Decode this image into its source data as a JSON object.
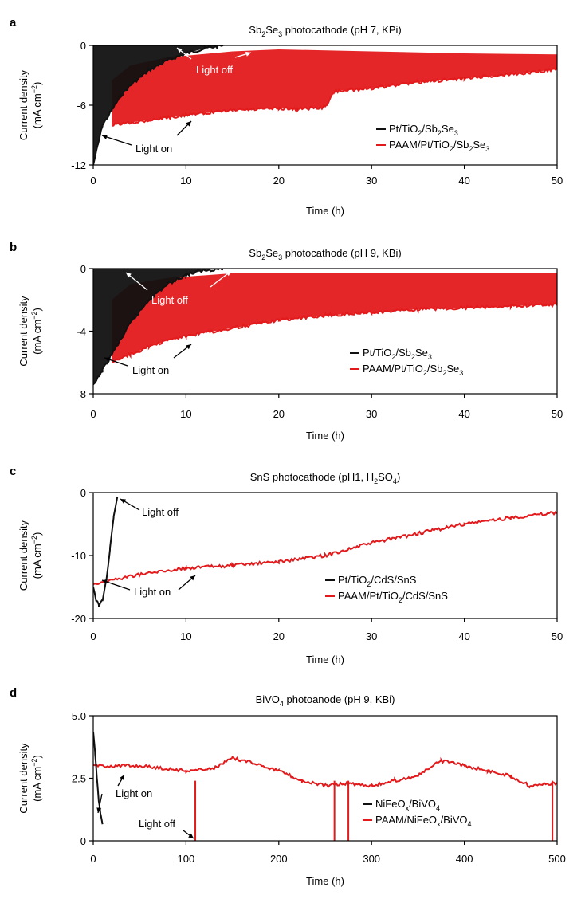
{
  "chart_data": [
    {
      "panel": "a",
      "type": "line",
      "title": {
        "main": "Sb",
        "sub1": "2",
        "mid": "Se",
        "sub2": "3",
        "tail": " photocathode (pH 7, KPi)"
      },
      "xlabel": "Time (h)",
      "ylabel": "Current density",
      "yunit": {
        "pre": "(mA cm",
        "sup": "−2",
        "post": ")"
      },
      "xlim": [
        0,
        50
      ],
      "ylim": [
        -12,
        0
      ],
      "xticks": [
        0,
        10,
        20,
        30,
        40,
        50
      ],
      "yticks": [
        0,
        -6,
        -12
      ],
      "legend_position": "lower-right",
      "series": [
        {
          "name": "Pt/TiO2/Sb2Se3",
          "legend": {
            "parts": [
              "Pt/TiO",
              "2",
              "/Sb",
              "2",
              "Se",
              "3"
            ]
          },
          "color": "#111111",
          "points": [
            [
              0,
              -12
            ],
            [
              0.5,
              -10
            ],
            [
              1,
              -8
            ],
            [
              2,
              -6.5
            ],
            [
              3,
              -5
            ],
            [
              4,
              -4
            ],
            [
              6,
              -2.5
            ],
            [
              8,
              -1.5
            ],
            [
              10,
              -0.8
            ],
            [
              12,
              -0.3
            ],
            [
              14,
              0
            ]
          ],
          "light_off": [
            [
              0,
              0
            ],
            [
              14,
              0
            ]
          ]
        },
        {
          "name": "PAAM/Pt/TiO2/Sb2Se3",
          "legend": {
            "parts": [
              "PAAM/Pt/TiO",
              "2",
              "/Sb",
              "2",
              "Se",
              "3"
            ]
          },
          "color": "#e31a1c",
          "points": [
            [
              2,
              -8
            ],
            [
              5,
              -7.6
            ],
            [
              10,
              -7
            ],
            [
              15,
              -6.5
            ],
            [
              20,
              -6.3
            ],
            [
              22,
              -6.4
            ],
            [
              25,
              -6.2
            ],
            [
              26,
              -4.6
            ],
            [
              30,
              -4.3
            ],
            [
              35,
              -3.7
            ],
            [
              40,
              -3.3
            ],
            [
              45,
              -2.9
            ],
            [
              50,
              -2.4
            ]
          ],
          "light_off": [
            [
              2,
              -3.5
            ],
            [
              4,
              -2
            ],
            [
              8,
              -1.2
            ],
            [
              15,
              -0.6
            ],
            [
              20,
              -0.4
            ],
            [
              30,
              -0.6
            ],
            [
              40,
              -0.8
            ],
            [
              50,
              -0.9
            ]
          ]
        }
      ],
      "annotations": [
        "Light off",
        "Light on"
      ]
    },
    {
      "panel": "b",
      "type": "line",
      "title": {
        "main": "Sb",
        "sub1": "2",
        "mid": "Se",
        "sub2": "3",
        "tail": " photocathode (pH 9, KBi)"
      },
      "xlabel": "Time (h)",
      "ylabel": "Current density",
      "yunit": {
        "pre": "(mA cm",
        "sup": "−2",
        "post": ")"
      },
      "xlim": [
        0,
        50
      ],
      "ylim": [
        -8,
        0
      ],
      "xticks": [
        0,
        10,
        20,
        30,
        40,
        50
      ],
      "yticks": [
        0,
        -4,
        -8
      ],
      "legend_position": "lower-right",
      "series": [
        {
          "name": "Pt/TiO2/Sb2Se3",
          "legend": {
            "parts": [
              "Pt/TiO",
              "2",
              "/Sb",
              "2",
              "Se",
              "3"
            ]
          },
          "color": "#111111",
          "points": [
            [
              0,
              -7.5
            ],
            [
              1,
              -6.5
            ],
            [
              2,
              -5.5
            ],
            [
              3,
              -4.5
            ],
            [
              4,
              -3.5
            ],
            [
              6,
              -2
            ],
            [
              8,
              -1
            ],
            [
              10,
              -0.4
            ],
            [
              12,
              -0.1
            ],
            [
              14,
              0
            ]
          ],
          "light_off": [
            [
              0,
              0
            ],
            [
              14,
              0
            ]
          ]
        },
        {
          "name": "PAAM/Pt/TiO2/Sb2Se3",
          "legend": {
            "parts": [
              "PAAM/Pt/TiO",
              "2",
              "/Sb",
              "2",
              "Se",
              "3"
            ]
          },
          "color": "#e31a1c",
          "points": [
            [
              2,
              -6
            ],
            [
              4,
              -5.5
            ],
            [
              6,
              -5
            ],
            [
              8,
              -4.6
            ],
            [
              10,
              -4.3
            ],
            [
              15,
              -3.8
            ],
            [
              20,
              -3.3
            ],
            [
              25,
              -3
            ],
            [
              30,
              -2.8
            ],
            [
              35,
              -2.6
            ],
            [
              40,
              -2.5
            ],
            [
              45,
              -2.4
            ],
            [
              50,
              -2.3
            ]
          ],
          "light_off": [
            [
              2,
              -2
            ],
            [
              4,
              -1
            ],
            [
              8,
              -0.6
            ],
            [
              15,
              -0.3
            ],
            [
              25,
              -0.3
            ],
            [
              35,
              -0.3
            ],
            [
              50,
              -0.3
            ]
          ]
        }
      ],
      "annotations": [
        "Light off",
        "Light on"
      ]
    },
    {
      "panel": "c",
      "type": "line",
      "title": {
        "main": "SnS photocathode (pH1, H",
        "sub1": "2",
        "mid": "SO",
        "sub2": "4",
        "tail": ")"
      },
      "xlabel": "Time (h)",
      "ylabel": "Current density",
      "yunit": {
        "pre": "(mA cm",
        "sup": "−2",
        "post": ")"
      },
      "xlim": [
        0,
        50
      ],
      "ylim": [
        -20,
        0
      ],
      "xticks": [
        0,
        10,
        20,
        30,
        40,
        50
      ],
      "yticks": [
        0,
        -10,
        -20
      ],
      "legend_position": "lower-right",
      "series": [
        {
          "name": "Pt/TiO2/CdS/SnS",
          "legend": {
            "parts": [
              "Pt/TiO",
              "2",
              "/CdS/SnS"
            ]
          },
          "color": "#111111",
          "points": [
            [
              0,
              -15
            ],
            [
              0.3,
              -17
            ],
            [
              0.6,
              -18
            ],
            [
              1,
              -17
            ],
            [
              1.4,
              -14
            ],
            [
              1.8,
              -9
            ],
            [
              2.2,
              -4
            ],
            [
              2.6,
              -0.5
            ]
          ]
        },
        {
          "name": "PAAM/Pt/TiO2/CdS/SnS",
          "legend": {
            "parts": [
              "PAAM/Pt/TiO",
              "2",
              "/CdS/SnS"
            ]
          },
          "color": "#e31a1c",
          "points": [
            [
              0,
              -14.5
            ],
            [
              5,
              -13
            ],
            [
              10,
              -12
            ],
            [
              15,
              -11.6
            ],
            [
              20,
              -11
            ],
            [
              25,
              -10
            ],
            [
              30,
              -8
            ],
            [
              35,
              -6.5
            ],
            [
              40,
              -5
            ],
            [
              45,
              -4
            ],
            [
              50,
              -3.2
            ]
          ]
        }
      ],
      "annotations": [
        "Light off",
        "Light on"
      ]
    },
    {
      "panel": "d",
      "type": "line",
      "title": {
        "main": "BiVO",
        "sub1": "4",
        "mid": "",
        "sub2": "",
        "tail": " photoanode (pH 9, KBi)"
      },
      "xlabel": "Time (h)",
      "ylabel": "Current density",
      "yunit": {
        "pre": "(mA cm",
        "sup": "−2",
        "post": ")"
      },
      "xlim": [
        0,
        500
      ],
      "ylim": [
        0,
        5
      ],
      "xticks": [
        0,
        100,
        200,
        300,
        400,
        500
      ],
      "yticks": [
        "5.0",
        "2.5",
        "0"
      ],
      "legend_position": "lower-right",
      "series": [
        {
          "name": "NiFeOx/BiVO4",
          "legend": {
            "parts": [
              "NiFeO",
              "x",
              "/BiVO",
              "4"
            ]
          },
          "color": "#111111",
          "points": [
            [
              0,
              4.3
            ],
            [
              2,
              3.5
            ],
            [
              4,
              2.5
            ],
            [
              6,
              1.6
            ],
            [
              8,
              1.0
            ],
            [
              10,
              0.7
            ]
          ]
        },
        {
          "name": "PAAM/NiFeOx/BiVO4",
          "legend": {
            "parts": [
              "PAAM/NiFeO",
              "x",
              "/BiVO",
              "4"
            ]
          },
          "color": "#e31a1c",
          "points": [
            [
              0,
              3
            ],
            [
              50,
              3
            ],
            [
              100,
              2.8
            ],
            [
              130,
              2.9
            ],
            [
              150,
              3.3
            ],
            [
              175,
              3.1
            ],
            [
              200,
              2.8
            ],
            [
              225,
              2.4
            ],
            [
              250,
              2.2
            ],
            [
              275,
              2.3
            ],
            [
              300,
              2.2
            ],
            [
              325,
              2.4
            ],
            [
              350,
              2.6
            ],
            [
              375,
              3.2
            ],
            [
              400,
              3.0
            ],
            [
              425,
              2.8
            ],
            [
              450,
              2.6
            ],
            [
              470,
              2.2
            ],
            [
              500,
              2.3
            ]
          ],
          "drops": [
            110,
            260,
            275,
            495
          ]
        }
      ],
      "annotations": [
        "Light on",
        "Light off"
      ]
    }
  ],
  "panel_labels": [
    "a",
    "b",
    "c",
    "d"
  ]
}
